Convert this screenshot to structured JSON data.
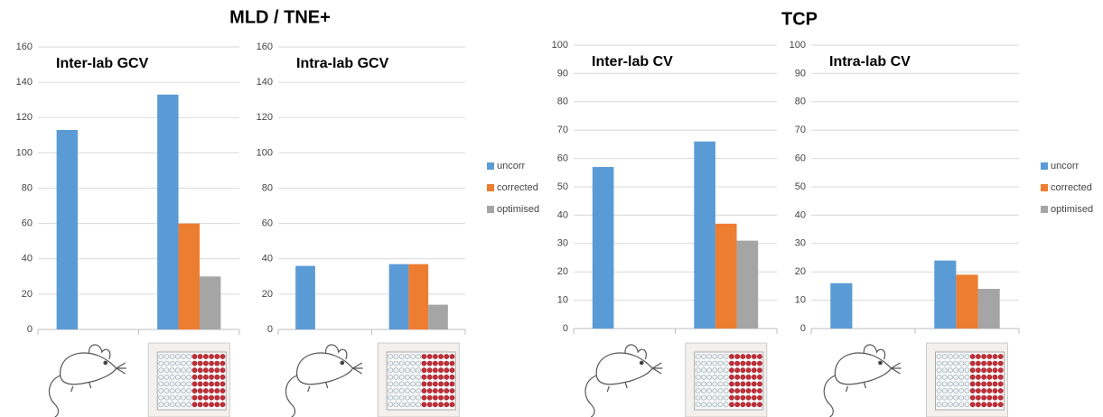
{
  "figure_titles": [
    "MLD / TNE+",
    "TCP"
  ],
  "chart_data": [
    {
      "type": "bar",
      "title": "Inter-lab GCV",
      "categories": [
        null,
        null
      ],
      "series": [
        {
          "name": "uncorr",
          "color": "#5b9bd5",
          "values": [
            113,
            133
          ]
        },
        {
          "name": "corrected",
          "color": "#ed7d31",
          "values": [
            null,
            60
          ]
        },
        {
          "name": "optimised",
          "color": "#a5a5a5",
          "values": [
            null,
            30
          ]
        }
      ],
      "ylim": [
        0,
        160
      ],
      "yticks": [
        0,
        20,
        40,
        60,
        80,
        100,
        120,
        140,
        160
      ],
      "grid": true,
      "legend": "none"
    },
    {
      "type": "bar",
      "title": "Intra-lab GCV",
      "categories": [
        null,
        null
      ],
      "series": [
        {
          "name": "uncorr",
          "color": "#5b9bd5",
          "values": [
            36,
            37
          ]
        },
        {
          "name": "corrected",
          "color": "#ed7d31",
          "values": [
            null,
            37
          ]
        },
        {
          "name": "optimised",
          "color": "#a5a5a5",
          "values": [
            null,
            14
          ]
        }
      ],
      "ylim": [
        0,
        160
      ],
      "yticks": [
        0,
        20,
        40,
        60,
        80,
        100,
        120,
        140,
        160
      ],
      "grid": true,
      "legend": "right"
    },
    {
      "type": "bar",
      "title": "Inter-lab CV",
      "categories": [
        null,
        null
      ],
      "series": [
        {
          "name": "uncorr",
          "color": "#5b9bd5",
          "values": [
            57,
            66
          ]
        },
        {
          "name": "corrected",
          "color": "#ed7d31",
          "values": [
            null,
            37
          ]
        },
        {
          "name": "optimised",
          "color": "#a5a5a5",
          "values": [
            null,
            31
          ]
        }
      ],
      "ylim": [
        0,
        100
      ],
      "yticks": [
        0,
        10,
        20,
        30,
        40,
        50,
        60,
        70,
        80,
        90,
        100
      ],
      "grid": true,
      "legend": "none"
    },
    {
      "type": "bar",
      "title": "Intra-lab CV",
      "categories": [
        null,
        null
      ],
      "series": [
        {
          "name": "uncorr",
          "color": "#5b9bd5",
          "values": [
            16,
            24
          ]
        },
        {
          "name": "corrected",
          "color": "#ed7d31",
          "values": [
            null,
            19
          ]
        },
        {
          "name": "optimised",
          "color": "#a5a5a5",
          "values": [
            null,
            14
          ]
        }
      ],
      "ylim": [
        0,
        100
      ],
      "yticks": [
        0,
        10,
        20,
        30,
        40,
        50,
        60,
        70,
        80,
        90,
        100
      ],
      "grid": true,
      "legend": "right"
    }
  ]
}
